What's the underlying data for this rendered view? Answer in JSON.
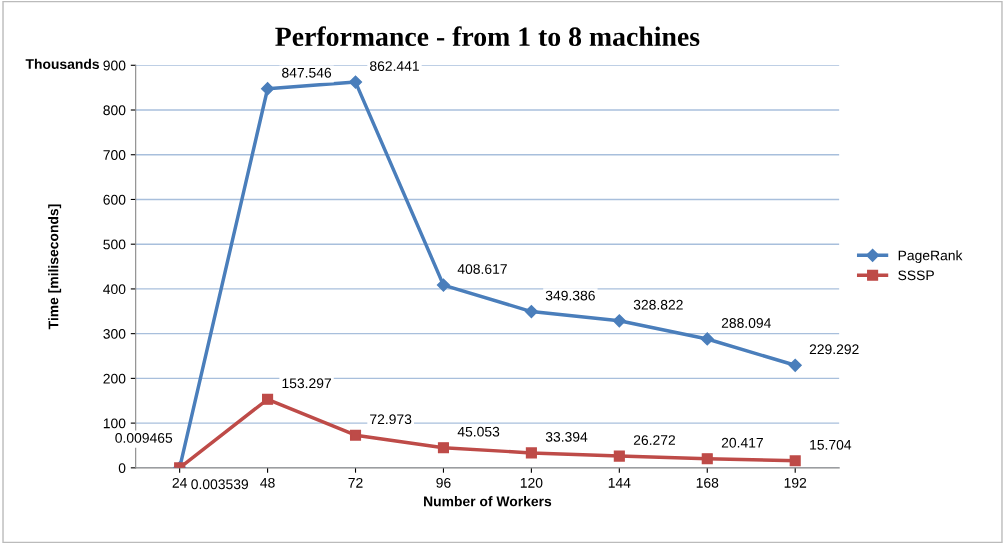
{
  "chart_data": {
    "type": "line",
    "title": "Performance - from 1 to 8 machines",
    "xlabel": "Number of Workers",
    "ylabel": "Time [miliseconds]",
    "annotations": [
      "Thousands"
    ],
    "categories": [
      "24",
      "48",
      "72",
      "96",
      "120",
      "144",
      "168",
      "192"
    ],
    "series": [
      {
        "name": "PageRank",
        "color": "#4a7ebb",
        "marker": "diamond",
        "values": [
          0.009465,
          847.546,
          862.441,
          408.617,
          349.386,
          328.822,
          288.094,
          229.292
        ]
      },
      {
        "name": "SSSP",
        "color": "#be4b48",
        "marker": "square",
        "values": [
          0.003539,
          153.297,
          72.973,
          45.053,
          33.394,
          26.272,
          20.417,
          15.704
        ]
      }
    ],
    "ylim": [
      0,
      900
    ],
    "yticks": [
      0,
      100,
      200,
      300,
      400,
      500,
      600,
      700,
      800,
      900
    ],
    "grid": "y",
    "legend": "right",
    "data_labels": true
  }
}
